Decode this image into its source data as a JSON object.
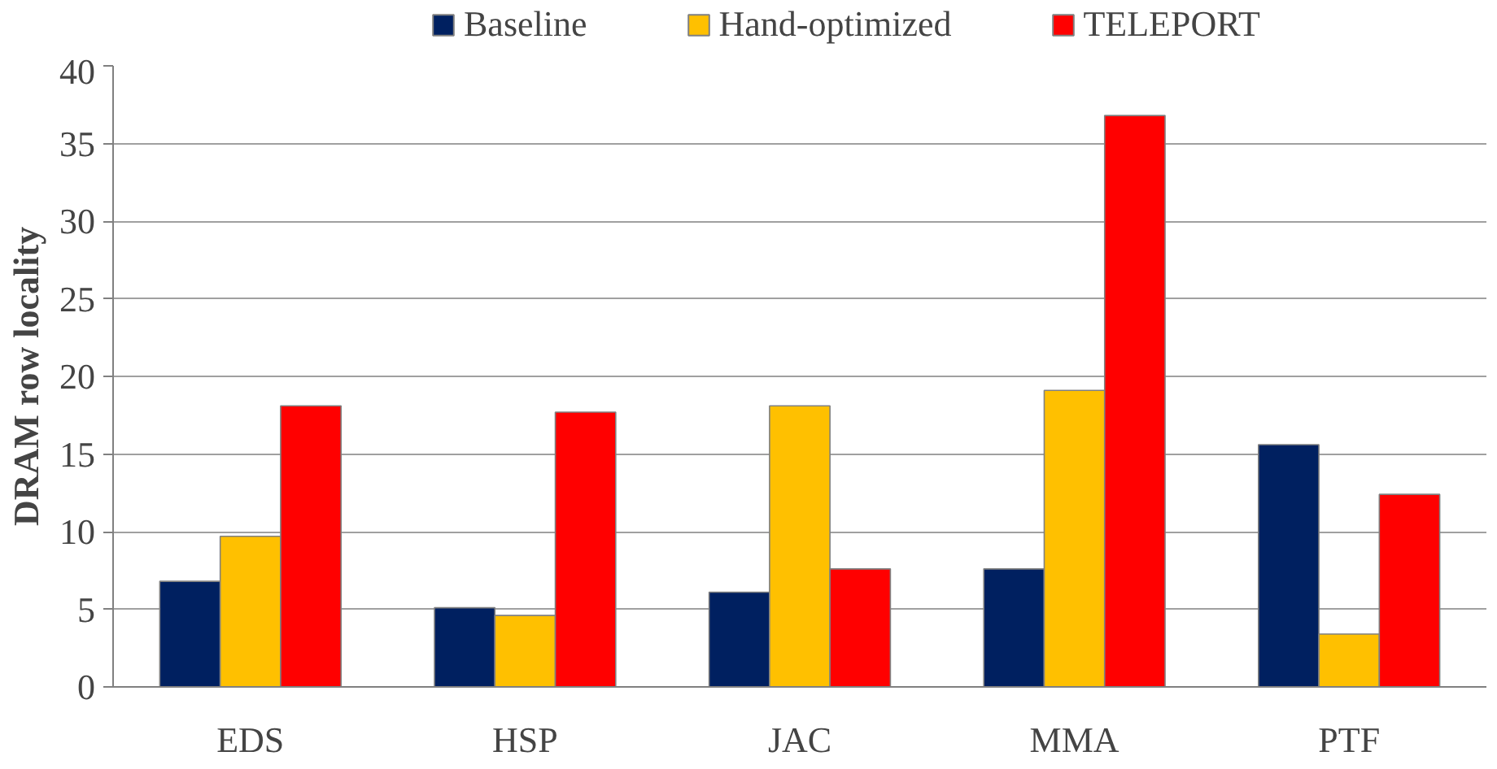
{
  "chart_data": {
    "type": "bar",
    "ylabel": "DRAM row locality",
    "categories": [
      "EDS",
      "HSP",
      "JAC",
      "MMA",
      "PTF"
    ],
    "series": [
      {
        "name": "Baseline",
        "color": "#002060",
        "values": [
          6.8,
          5.1,
          6.1,
          7.6,
          15.6
        ]
      },
      {
        "name": "Hand-optimized",
        "color": "#ffc000",
        "values": [
          9.7,
          4.6,
          18.1,
          19.1,
          3.4
        ]
      },
      {
        "name": "TELEPORT",
        "color": "#ff0000",
        "values": [
          18.1,
          17.7,
          7.6,
          36.8,
          12.4
        ]
      }
    ],
    "ylim": [
      0,
      40
    ],
    "yticks": [
      0,
      5,
      10,
      15,
      20,
      25,
      30,
      35,
      40
    ],
    "grid": "y",
    "legend": "top"
  }
}
